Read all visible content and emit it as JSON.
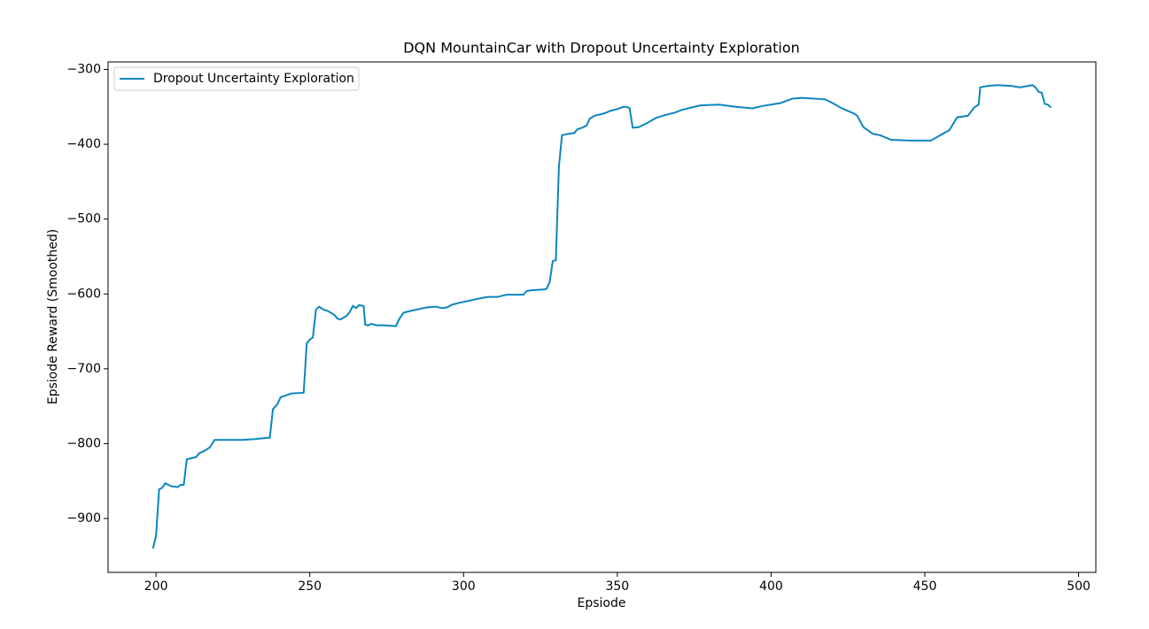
{
  "chart_data": {
    "type": "line",
    "title": "DQN MountainCar with Dropout Uncertainty Exploration",
    "xlabel": "Epsiode",
    "ylabel": "Epsiode Reward (Smoothed)",
    "x": [
      199,
      200,
      201,
      202,
      203,
      204,
      205,
      207,
      208,
      209,
      210,
      211,
      213,
      214,
      216,
      217.5,
      219,
      224.5,
      228,
      232,
      236.5,
      237,
      238,
      239.5,
      240.5,
      242,
      244,
      248,
      249,
      250,
      251,
      252,
      253,
      254.5,
      256,
      258,
      259,
      260,
      262,
      263,
      264,
      265,
      266,
      267.5,
      268,
      269,
      270,
      272,
      274,
      278,
      279,
      280.5,
      283.5,
      288,
      291,
      293,
      294.5,
      296.5,
      299.5,
      302,
      304,
      306.5,
      308,
      311,
      313,
      314,
      316.5,
      319.5,
      320.5,
      322.5,
      326,
      327,
      328,
      329,
      330,
      331,
      332,
      334,
      336,
      337,
      338.5,
      340,
      341,
      342.5,
      345.5,
      348,
      350,
      352,
      353,
      354,
      355,
      357,
      360,
      362.5,
      365.5,
      368.5,
      371,
      374,
      377,
      383,
      388.5,
      394,
      397,
      403,
      407,
      410,
      417.5,
      420,
      423,
      427,
      428,
      430,
      431,
      433,
      435.5,
      439,
      445,
      452,
      455,
      458,
      459,
      460.5,
      464,
      466,
      467.5,
      468,
      470.5,
      473.5,
      478,
      481,
      485,
      486,
      487,
      488,
      489,
      490,
      491
    ],
    "series": [
      {
        "name": "Dropout Uncertainty Exploration",
        "color": "#0c86bd",
        "values": [
          -940,
          -923,
          -861,
          -859,
          -853,
          -855,
          -857,
          -858,
          -855,
          -855,
          -821,
          -820,
          -818,
          -813,
          -809,
          -805,
          -795,
          -795,
          -795,
          -794,
          -792,
          -792,
          -754,
          -747,
          -738,
          -736,
          -733,
          -732,
          -666,
          -661,
          -658,
          -621,
          -617,
          -621,
          -623,
          -628,
          -633,
          -634,
          -629,
          -624,
          -616,
          -619,
          -615,
          -616,
          -641,
          -642,
          -640,
          -642,
          -642,
          -643,
          -634,
          -625,
          -622,
          -618,
          -617,
          -619,
          -618,
          -614,
          -611,
          -609,
          -607,
          -605,
          -604,
          -604,
          -602,
          -601,
          -601,
          -601,
          -596,
          -595,
          -594,
          -593,
          -584,
          -556,
          -555,
          -430,
          -388,
          -386,
          -385,
          -380,
          -378,
          -375,
          -366,
          -362,
          -359,
          -355,
          -353,
          -350,
          -350,
          -352,
          -378,
          -377,
          -371,
          -365,
          -361,
          -358,
          -354,
          -351,
          -348,
          -347,
          -350,
          -352,
          -349,
          -345,
          -339,
          -338,
          -340,
          -345,
          -352,
          -359,
          -362,
          -377,
          -380,
          -386,
          -388,
          -394,
          -395,
          -395,
          -388,
          -381,
          -374,
          -364,
          -362,
          -351,
          -347,
          -324,
          -322,
          -321,
          -322,
          -324,
          -321,
          -324,
          -330,
          -331,
          -346,
          -347,
          -351
        ]
      }
    ],
    "xlim": [
      184.4,
      505.6
    ],
    "ylim": [
      -972,
      -290
    ],
    "xticks": [
      200,
      250,
      300,
      350,
      400,
      450,
      500
    ],
    "yticks": [
      {
        "value": -900,
        "label": "−900"
      },
      {
        "value": -800,
        "label": "−800"
      },
      {
        "value": -700,
        "label": "−700"
      },
      {
        "value": -600,
        "label": "−600"
      },
      {
        "value": -500,
        "label": "−500"
      },
      {
        "value": -400,
        "label": "−400"
      },
      {
        "value": -300,
        "label": "−300"
      }
    ],
    "legend": "upper left"
  }
}
